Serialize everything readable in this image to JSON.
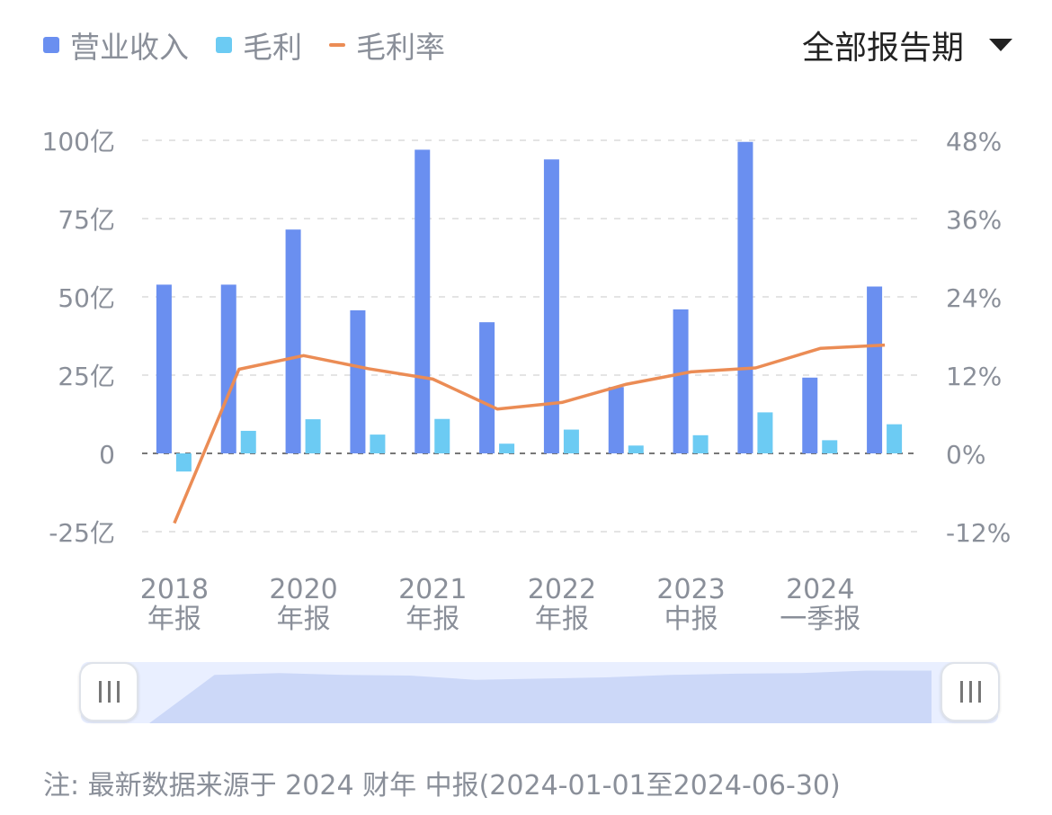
{
  "legend": [
    {
      "label": "营业收入",
      "kind": "box",
      "color": "#6a8ff0"
    },
    {
      "label": "毛利",
      "kind": "box",
      "color": "#6ccbf3"
    },
    {
      "label": "毛利率",
      "kind": "line",
      "color": "#eb8c55"
    }
  ],
  "period_selector": {
    "label": "全部报告期"
  },
  "chart_data": {
    "type": "bar",
    "categories": [
      "2018 年报",
      "",
      "2020 年报",
      "",
      "2021 年报",
      "",
      "2022 年报",
      "",
      "2023 中报",
      "",
      "2024 一季报",
      ""
    ],
    "x_tick_labels": [
      {
        "line1": "2018",
        "line2": "年报",
        "index": 0
      },
      {
        "line1": "2020",
        "line2": "年报",
        "index": 2
      },
      {
        "line1": "2021",
        "line2": "年报",
        "index": 4
      },
      {
        "line1": "2022",
        "line2": "年报",
        "index": 6
      },
      {
        "line1": "2023",
        "line2": "中报",
        "index": 8
      },
      {
        "line1": "2024",
        "line2": "一季报",
        "index": 10
      }
    ],
    "series": [
      {
        "name": "营业收入",
        "axis": "left",
        "type": "bar",
        "color": "#6a8ff0",
        "values": [
          53.9,
          53.9,
          71.5,
          45.7,
          97.0,
          41.9,
          93.9,
          21.2,
          46.0,
          99.5,
          24.2,
          53.3
        ]
      },
      {
        "name": "毛利",
        "axis": "left",
        "type": "bar",
        "color": "#6ccbf3",
        "values": [
          -5.8,
          7.2,
          10.9,
          6.0,
          11.0,
          3.1,
          7.6,
          2.5,
          5.8,
          13.1,
          4.2,
          9.3
        ]
      },
      {
        "name": "毛利率",
        "axis": "right",
        "type": "line",
        "color": "#eb8c55",
        "values": [
          -10.7,
          12.9,
          15.0,
          13.0,
          11.4,
          6.8,
          7.8,
          10.6,
          12.5,
          13.1,
          16.1,
          16.6
        ]
      }
    ],
    "y_left": {
      "ticks": [
        "100亿",
        "75亿",
        "50亿",
        "25亿",
        "0",
        "-25亿"
      ],
      "ylim": [
        -25,
        100
      ]
    },
    "y_right": {
      "ticks": [
        "48%",
        "36%",
        "24%",
        "12%",
        "0%",
        "-12%"
      ],
      "ylim": [
        -12,
        48
      ]
    },
    "grid": true,
    "legend_position": "top-left"
  },
  "overview": {
    "values": [
      0,
      79,
      82,
      79,
      78,
      71,
      73,
      75,
      79,
      81,
      82,
      86,
      86
    ]
  },
  "note": "注: 最新数据来源于 2024 财年 中报(2024-01-01至2024-06-30)"
}
